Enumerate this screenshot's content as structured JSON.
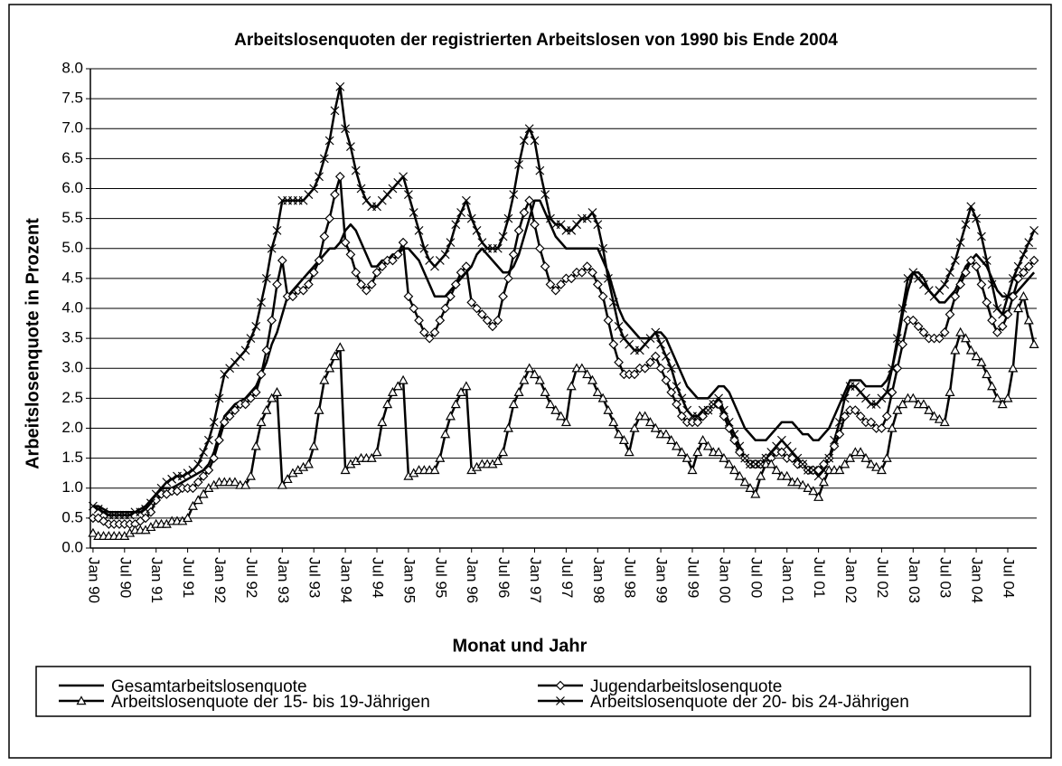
{
  "chart_data": {
    "type": "line",
    "title": "Arbeitslosenquoten der registrierten Arbeitslosen von 1990 bis Ende 2004",
    "x_label": "Monat und Jahr",
    "y_label": "Arbeitslosenquote in Prozent",
    "ylim": [
      0,
      8
    ],
    "yticks": [
      {
        "value": 0,
        "label": "0.0"
      },
      0.5,
      {
        "value": 1,
        "label": "1.0"
      },
      1.5,
      {
        "value": 2,
        "label": "2.0"
      },
      2.5,
      {
        "value": 3,
        "label": "3.0"
      },
      3.5,
      {
        "value": 4,
        "label": "4.0"
      },
      4.5,
      {
        "value": 5,
        "label": "5.0"
      },
      5.5,
      {
        "value": 6,
        "label": "6.0"
      },
      6.5,
      {
        "value": 7,
        "label": "7.0"
      },
      7.5,
      {
        "value": 8,
        "label": "8.0"
      }
    ],
    "grid": true,
    "legend": "bottom",
    "categories": [
      "Jan 90",
      null,
      null,
      null,
      null,
      null,
      "Jul 90",
      null,
      null,
      null,
      null,
      null,
      "Jan 91",
      null,
      null,
      null,
      null,
      null,
      "Jul 91",
      null,
      null,
      null,
      null,
      null,
      "Jan 92",
      null,
      null,
      null,
      null,
      null,
      "Jul 92",
      null,
      null,
      null,
      null,
      null,
      "Jan 93",
      null,
      null,
      null,
      null,
      null,
      "Jul 93",
      null,
      null,
      null,
      null,
      null,
      "Jan 94",
      null,
      null,
      null,
      null,
      null,
      "Jul 94",
      null,
      null,
      null,
      null,
      null,
      "Jan 95",
      null,
      null,
      null,
      null,
      null,
      "Jul 95",
      null,
      null,
      null,
      null,
      null,
      "Jan 96",
      null,
      null,
      null,
      null,
      null,
      "Jul 96",
      null,
      null,
      null,
      null,
      null,
      "Jan 97",
      null,
      null,
      null,
      null,
      null,
      "Jul 97",
      null,
      null,
      null,
      null,
      null,
      "Jan 98",
      null,
      null,
      null,
      null,
      null,
      "Jul 98",
      null,
      null,
      null,
      null,
      null,
      "Jan 99",
      null,
      null,
      null,
      null,
      null,
      "Jul 99",
      null,
      null,
      null,
      null,
      null,
      "Jan 00",
      null,
      null,
      null,
      null,
      null,
      "Jul 00",
      null,
      null,
      null,
      null,
      null,
      "Jan 01",
      null,
      null,
      null,
      null,
      null,
      "Jul 01",
      null,
      null,
      null,
      null,
      null,
      "Jan 02",
      null,
      null,
      null,
      null,
      null,
      "Jul 02",
      null,
      null,
      null,
      null,
      null,
      "Jan 03",
      null,
      null,
      null,
      null,
      null,
      "Jul 03",
      null,
      null,
      null,
      null,
      null,
      "Jan 04",
      null,
      null,
      null,
      null,
      null,
      "Jul 04",
      null,
      null,
      null,
      null,
      null
    ],
    "series": [
      {
        "name": "Gesamtarbeitslosenquote",
        "color": "#000000",
        "marker": "none",
        "values": [
          0.7,
          0.7,
          0.65,
          0.6,
          0.6,
          0.6,
          0.6,
          0.6,
          0.6,
          0.65,
          0.7,
          0.8,
          0.9,
          1.0,
          1.0,
          1.0,
          1.05,
          1.1,
          1.15,
          1.2,
          1.25,
          1.3,
          1.4,
          1.6,
          1.9,
          2.2,
          2.3,
          2.4,
          2.45,
          2.5,
          2.6,
          2.7,
          2.9,
          3.1,
          3.4,
          3.6,
          3.9,
          4.2,
          4.3,
          4.4,
          4.5,
          4.6,
          4.7,
          4.8,
          4.9,
          5.0,
          5.0,
          5.1,
          5.3,
          5.4,
          5.3,
          5.1,
          4.9,
          4.7,
          4.7,
          4.8,
          4.8,
          4.9,
          4.9,
          5.0,
          5.0,
          4.9,
          4.8,
          4.6,
          4.4,
          4.2,
          4.2,
          4.2,
          4.3,
          4.4,
          4.5,
          4.6,
          4.7,
          4.9,
          5.0,
          4.9,
          4.8,
          4.7,
          4.6,
          4.6,
          4.7,
          4.9,
          5.2,
          5.5,
          5.8,
          5.8,
          5.6,
          5.4,
          5.2,
          5.1,
          5.0,
          5.0,
          5.0,
          5.0,
          5.0,
          5.0,
          5.0,
          4.8,
          4.6,
          4.3,
          4.0,
          3.8,
          3.7,
          3.6,
          3.5,
          3.5,
          3.5,
          3.6,
          3.6,
          3.5,
          3.3,
          3.1,
          2.9,
          2.7,
          2.6,
          2.5,
          2.5,
          2.5,
          2.6,
          2.7,
          2.7,
          2.6,
          2.4,
          2.2,
          2.0,
          1.9,
          1.8,
          1.8,
          1.8,
          1.9,
          2.0,
          2.1,
          2.1,
          2.1,
          2.0,
          1.9,
          1.9,
          1.8,
          1.8,
          1.9,
          2.0,
          2.2,
          2.4,
          2.6,
          2.8,
          2.8,
          2.8,
          2.7,
          2.7,
          2.7,
          2.7,
          2.8,
          3.0,
          3.4,
          3.9,
          4.3,
          4.6,
          4.6,
          4.5,
          4.3,
          4.2,
          4.1,
          4.1,
          4.2,
          4.3,
          4.5,
          4.7,
          4.8,
          4.9,
          4.8,
          4.7,
          4.5,
          4.3,
          4.2,
          4.2,
          4.2,
          4.3,
          4.4,
          4.5,
          4.6
        ]
      },
      {
        "name": "Jugendarbeitslosenquote",
        "color": "#000000",
        "marker": "diamond",
        "values": [
          0.5,
          0.5,
          0.45,
          0.4,
          0.4,
          0.4,
          0.4,
          0.4,
          0.4,
          0.45,
          0.5,
          0.6,
          0.8,
          0.9,
          0.9,
          0.95,
          0.95,
          1.0,
          1.0,
          1.0,
          1.1,
          1.2,
          1.3,
          1.5,
          1.8,
          2.1,
          2.2,
          2.3,
          2.4,
          2.4,
          2.5,
          2.6,
          2.9,
          3.3,
          3.8,
          4.4,
          4.8,
          4.2,
          4.2,
          4.3,
          4.3,
          4.4,
          4.6,
          4.8,
          5.2,
          5.5,
          5.9,
          6.2,
          5.1,
          4.9,
          4.6,
          4.4,
          4.3,
          4.4,
          4.6,
          4.7,
          4.8,
          4.8,
          4.9,
          5.1,
          4.2,
          4.0,
          3.8,
          3.6,
          3.5,
          3.6,
          3.8,
          4.0,
          4.2,
          4.4,
          4.6,
          4.7,
          4.1,
          4.0,
          3.9,
          3.8,
          3.7,
          3.8,
          4.2,
          4.5,
          4.9,
          5.3,
          5.6,
          5.8,
          5.4,
          5.0,
          4.7,
          4.4,
          4.3,
          4.4,
          4.5,
          4.5,
          4.6,
          4.6,
          4.7,
          4.6,
          4.4,
          4.2,
          3.8,
          3.4,
          3.1,
          2.9,
          2.9,
          2.9,
          3.0,
          3.0,
          3.1,
          3.2,
          3.0,
          2.8,
          2.6,
          2.4,
          2.2,
          2.1,
          2.1,
          2.1,
          2.2,
          2.3,
          2.4,
          2.4,
          2.2,
          2.0,
          1.8,
          1.6,
          1.5,
          1.4,
          1.4,
          1.4,
          1.5,
          1.5,
          1.6,
          1.6,
          1.5,
          1.5,
          1.4,
          1.4,
          1.3,
          1.3,
          1.3,
          1.4,
          1.5,
          1.7,
          1.9,
          2.2,
          2.3,
          2.3,
          2.2,
          2.1,
          2.1,
          2.0,
          2.0,
          2.2,
          2.6,
          3.0,
          3.4,
          3.8,
          3.8,
          3.7,
          3.6,
          3.5,
          3.5,
          3.5,
          3.6,
          3.9,
          4.2,
          4.4,
          4.6,
          4.8,
          4.7,
          4.4,
          4.1,
          3.8,
          3.6,
          3.7,
          3.9,
          4.2,
          4.5,
          4.6,
          4.7,
          4.8
        ]
      },
      {
        "name": "Arbeitslosenquote der 15- bis 19-Jährigen",
        "color": "#000000",
        "marker": "triangle",
        "values": [
          0.25,
          0.2,
          0.2,
          0.2,
          0.2,
          0.2,
          0.2,
          0.25,
          0.3,
          0.3,
          0.3,
          0.35,
          0.4,
          0.4,
          0.4,
          0.45,
          0.45,
          0.45,
          0.5,
          0.7,
          0.8,
          0.9,
          1.0,
          1.05,
          1.1,
          1.1,
          1.1,
          1.1,
          1.05,
          1.05,
          1.2,
          1.7,
          2.1,
          2.3,
          2.5,
          2.6,
          1.05,
          1.15,
          1.25,
          1.3,
          1.35,
          1.4,
          1.7,
          2.3,
          2.8,
          3.0,
          3.2,
          3.35,
          1.3,
          1.4,
          1.45,
          1.5,
          1.5,
          1.5,
          1.6,
          2.1,
          2.4,
          2.6,
          2.7,
          2.8,
          1.2,
          1.25,
          1.3,
          1.3,
          1.3,
          1.3,
          1.5,
          1.9,
          2.2,
          2.4,
          2.6,
          2.7,
          1.3,
          1.35,
          1.4,
          1.4,
          1.4,
          1.45,
          1.6,
          2.0,
          2.4,
          2.6,
          2.8,
          3.0,
          2.9,
          2.8,
          2.6,
          2.4,
          2.3,
          2.2,
          2.1,
          2.7,
          3.0,
          3.0,
          2.9,
          2.8,
          2.6,
          2.5,
          2.3,
          2.1,
          1.9,
          1.8,
          1.6,
          2.0,
          2.2,
          2.2,
          2.1,
          2.0,
          1.9,
          1.9,
          1.8,
          1.7,
          1.6,
          1.5,
          1.3,
          1.6,
          1.8,
          1.7,
          1.6,
          1.6,
          1.5,
          1.4,
          1.3,
          1.2,
          1.1,
          1.0,
          0.9,
          1.2,
          1.4,
          1.4,
          1.3,
          1.2,
          1.2,
          1.1,
          1.1,
          1.05,
          1.0,
          0.95,
          0.85,
          1.1,
          1.3,
          1.3,
          1.3,
          1.4,
          1.5,
          1.6,
          1.6,
          1.5,
          1.4,
          1.35,
          1.3,
          1.5,
          2.0,
          2.3,
          2.4,
          2.5,
          2.5,
          2.4,
          2.4,
          2.3,
          2.2,
          2.15,
          2.1,
          2.6,
          3.3,
          3.6,
          3.5,
          3.3,
          3.2,
          3.1,
          2.9,
          2.7,
          2.5,
          2.4,
          2.5,
          3.0,
          4.0,
          4.2,
          3.8,
          3.4
        ]
      },
      {
        "name": "Arbeitslosenquote der 20- bis 24-Jährigen",
        "color": "#000000",
        "marker": "cross",
        "values": [
          0.7,
          0.65,
          0.6,
          0.55,
          0.55,
          0.55,
          0.55,
          0.55,
          0.6,
          0.6,
          0.65,
          0.75,
          0.9,
          1.0,
          1.1,
          1.15,
          1.2,
          1.2,
          1.25,
          1.3,
          1.4,
          1.6,
          1.8,
          2.1,
          2.5,
          2.9,
          3.0,
          3.1,
          3.2,
          3.3,
          3.5,
          3.7,
          4.1,
          4.5,
          5.0,
          5.3,
          5.8,
          5.8,
          5.8,
          5.8,
          5.8,
          5.9,
          6.0,
          6.2,
          6.5,
          6.8,
          7.3,
          7.7,
          7.0,
          6.7,
          6.3,
          6.0,
          5.8,
          5.7,
          5.7,
          5.8,
          5.9,
          6.0,
          6.1,
          6.2,
          5.9,
          5.6,
          5.3,
          5.0,
          4.8,
          4.7,
          4.8,
          4.9,
          5.1,
          5.4,
          5.6,
          5.8,
          5.5,
          5.3,
          5.1,
          5.0,
          5.0,
          5.0,
          5.2,
          5.5,
          5.9,
          6.4,
          6.8,
          7.0,
          6.8,
          6.3,
          5.9,
          5.5,
          5.4,
          5.4,
          5.3,
          5.3,
          5.4,
          5.5,
          5.5,
          5.6,
          5.4,
          5.0,
          4.5,
          4.1,
          3.7,
          3.5,
          3.4,
          3.3,
          3.3,
          3.4,
          3.5,
          3.6,
          3.4,
          3.2,
          3.0,
          2.7,
          2.5,
          2.3,
          2.2,
          2.2,
          2.3,
          2.3,
          2.4,
          2.5,
          2.3,
          2.1,
          1.9,
          1.7,
          1.5,
          1.4,
          1.4,
          1.4,
          1.5,
          1.6,
          1.7,
          1.8,
          1.7,
          1.6,
          1.5,
          1.4,
          1.3,
          1.3,
          1.2,
          1.3,
          1.5,
          1.8,
          2.1,
          2.5,
          2.7,
          2.7,
          2.6,
          2.5,
          2.4,
          2.4,
          2.5,
          2.6,
          3.0,
          3.5,
          4.0,
          4.5,
          4.6,
          4.5,
          4.4,
          4.3,
          4.2,
          4.3,
          4.4,
          4.6,
          4.8,
          5.1,
          5.4,
          5.7,
          5.5,
          5.2,
          4.8,
          4.4,
          4.0,
          3.9,
          4.2,
          4.5,
          4.7,
          4.9,
          5.1,
          5.3
        ]
      }
    ]
  }
}
